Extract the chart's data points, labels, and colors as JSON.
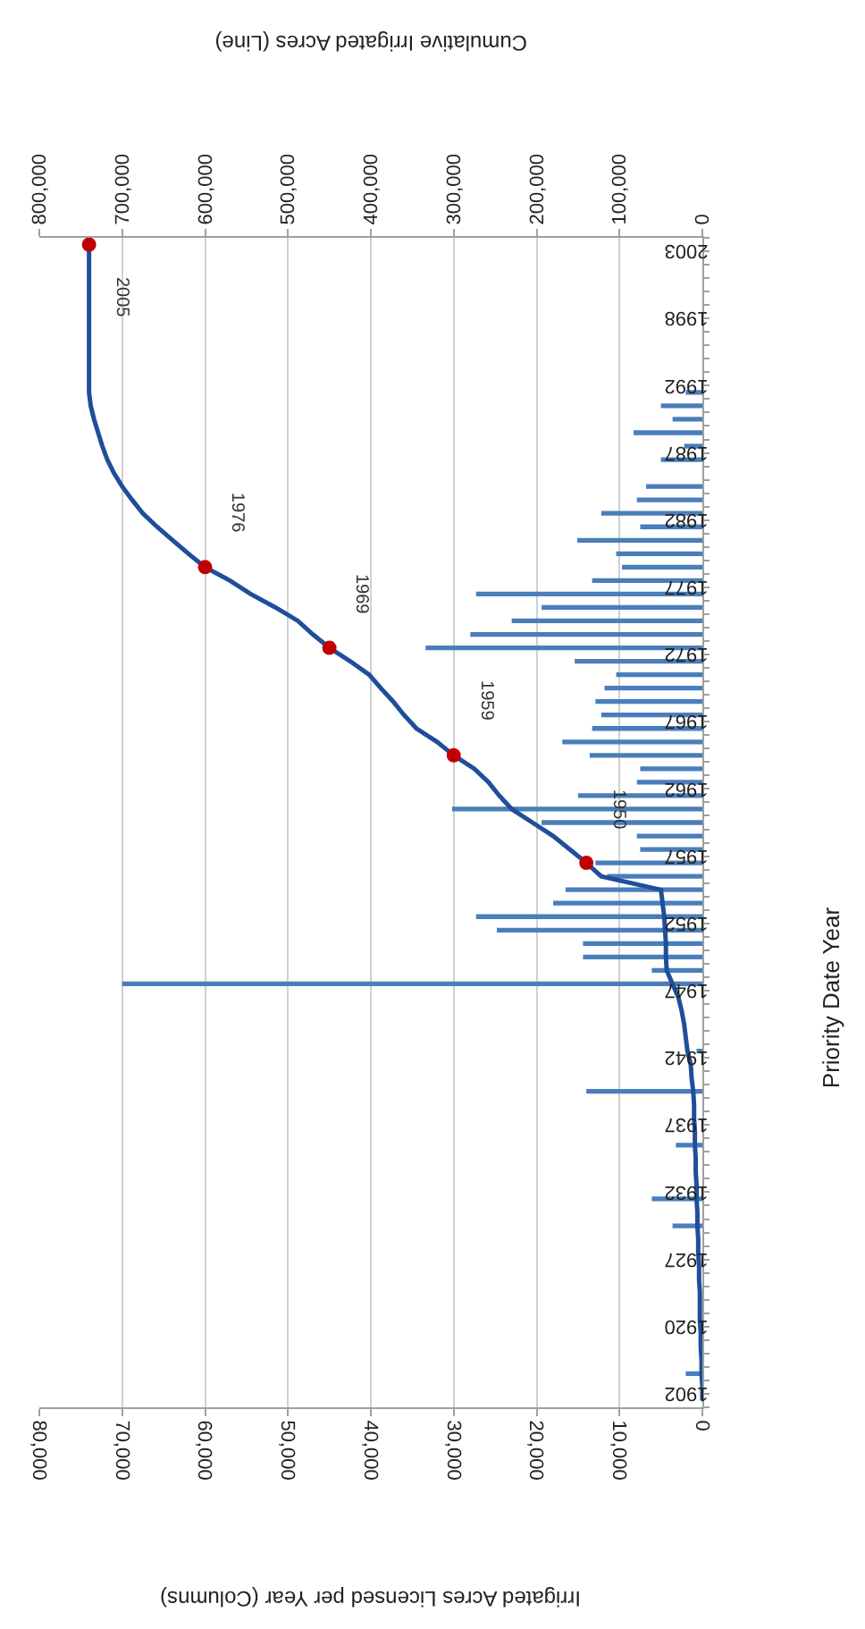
{
  "chart_data": {
    "type": "bar",
    "orientation": "horizontal",
    "xlabel": "Irrigated Acres Licensed per Year (Columns)",
    "x2label": "Cumulative Irrigated Acres (Line)",
    "ylabel": "Priority Date Year",
    "categories": [
      null,
      "2003",
      null,
      null,
      null,
      null,
      "1998",
      null,
      null,
      null,
      null,
      "1992",
      null,
      null,
      null,
      null,
      "1987",
      null,
      null,
      null,
      null,
      "1982",
      null,
      null,
      null,
      null,
      "1977",
      null,
      null,
      null,
      null,
      "1972",
      null,
      null,
      null,
      null,
      "1967",
      null,
      null,
      null,
      null,
      "1962",
      null,
      null,
      null,
      null,
      "1957",
      null,
      null,
      null,
      null,
      "1952",
      null,
      null,
      null,
      null,
      "1947",
      null,
      null,
      null,
      null,
      "1942",
      null,
      null,
      null,
      null,
      "1937",
      null,
      null,
      null,
      null,
      "1932",
      null,
      null,
      null,
      null,
      "1927",
      null,
      null,
      null,
      null,
      "1920",
      null,
      null,
      null,
      null,
      "1902"
    ],
    "xlim": [
      80000,
      0
    ],
    "xticks": [
      {
        "value": 80000,
        "label": "80,000"
      },
      {
        "value": 70000,
        "label": "70,000"
      },
      {
        "value": 60000,
        "label": "60,000"
      },
      {
        "value": 50000,
        "label": "50,000"
      },
      {
        "value": 40000,
        "label": "40,000"
      },
      {
        "value": 30000,
        "label": "30,000"
      },
      {
        "value": 20000,
        "label": "20,000"
      },
      {
        "value": 10000,
        "label": "10,000"
      },
      0
    ],
    "x2lim": [
      800000,
      0
    ],
    "x2ticks": [
      {
        "value": 800000,
        "label": "800,000"
      },
      {
        "value": 700000,
        "label": "700,000"
      },
      {
        "value": 600000,
        "label": "600,000"
      },
      {
        "value": 500000,
        "label": "500,000"
      },
      {
        "value": 400000,
        "label": "400,000"
      },
      {
        "value": 300000,
        "label": "300,000"
      },
      {
        "value": 200000,
        "label": "200,000"
      },
      {
        "value": 100000,
        "label": "100,000"
      },
      0
    ],
    "grid": "x",
    "annotations": [
      "2005",
      "1976",
      "1969",
      "1959",
      "1950"
    ],
    "series": [
      {
        "color": "#4a7ebb",
        "values": [
          null,
          null,
          null,
          null,
          null,
          null,
          null,
          null,
          null,
          null,
          null,
          2000,
          5000,
          3600,
          8300,
          2200,
          5000,
          null,
          6800,
          7900,
          12200,
          7500,
          15100,
          10400,
          9700,
          13300,
          27300,
          19400,
          23000,
          28000,
          33400,
          15400,
          10400,
          11800,
          12900,
          12200,
          13300,
          16900,
          13600,
          7500,
          7900,
          15000,
          30200,
          19400,
          7900,
          7500,
          12900,
          11500,
          16500,
          18000,
          27300,
          24800,
          14400,
          14400,
          6100,
          70000,
          null,
          null,
          null,
          null,
          700,
          null,
          null,
          14000,
          null,
          null,
          null,
          3200,
          null,
          null,
          null,
          6100,
          null,
          3600,
          null,
          null,
          null,
          null,
          null,
          null,
          null,
          null,
          null,
          null,
          2000,
          null,
          null
        ]
      },
      {
        "type": "line",
        "axis": "x2",
        "color": "#1f4e9a",
        "values": [
          740000,
          740000,
          740000,
          740000,
          740000,
          740000,
          740000,
          740000,
          740000,
          740000,
          740000,
          740000,
          738000,
          734000,
          729000,
          724000,
          718000,
          710000,
          700000,
          688000,
          675000,
          658000,
          639000,
          620000,
          600000,
          570000,
          545000,
          515000,
          488000,
          470000,
          450000,
          425000,
          402000,
          388000,
          373000,
          360000,
          345000,
          320000,
          300000,
          275000,
          258000,
          245000,
          230000,
          205000,
          180000,
          160000,
          140000,
          122000,
          50000,
          48000,
          46000,
          45000,
          44000,
          44000,
          43000,
          36000,
          29000,
          25000,
          22000,
          20000,
          18000,
          14000,
          13000,
          11000,
          10000,
          10000,
          9000,
          9000,
          8000,
          8000,
          7000,
          7000,
          6000,
          6000,
          5000,
          5000,
          4000,
          4000,
          3000,
          3000,
          3000,
          2000,
          2000,
          1000,
          1000,
          0,
          0
        ]
      },
      {
        "type": "scatter",
        "axis": "x2",
        "marker": "circle",
        "color": "#c00000",
        "values": [
          740000,
          null,
          null,
          null,
          null,
          null,
          null,
          null,
          null,
          null,
          null,
          null,
          null,
          null,
          null,
          null,
          null,
          null,
          null,
          null,
          null,
          null,
          null,
          null,
          600000,
          null,
          null,
          null,
          null,
          null,
          450000,
          null,
          null,
          null,
          null,
          null,
          null,
          null,
          300000,
          null,
          null,
          null,
          null,
          null,
          null,
          null,
          140000,
          null,
          null,
          null,
          null,
          null,
          null,
          null,
          null,
          null,
          null,
          null,
          null,
          null,
          null,
          null,
          null,
          null,
          null,
          null,
          null,
          null,
          null,
          null,
          null,
          null,
          null,
          null,
          null,
          null,
          null,
          null,
          null,
          null,
          null,
          null,
          null,
          null,
          null,
          null,
          null
        ]
      }
    ]
  }
}
